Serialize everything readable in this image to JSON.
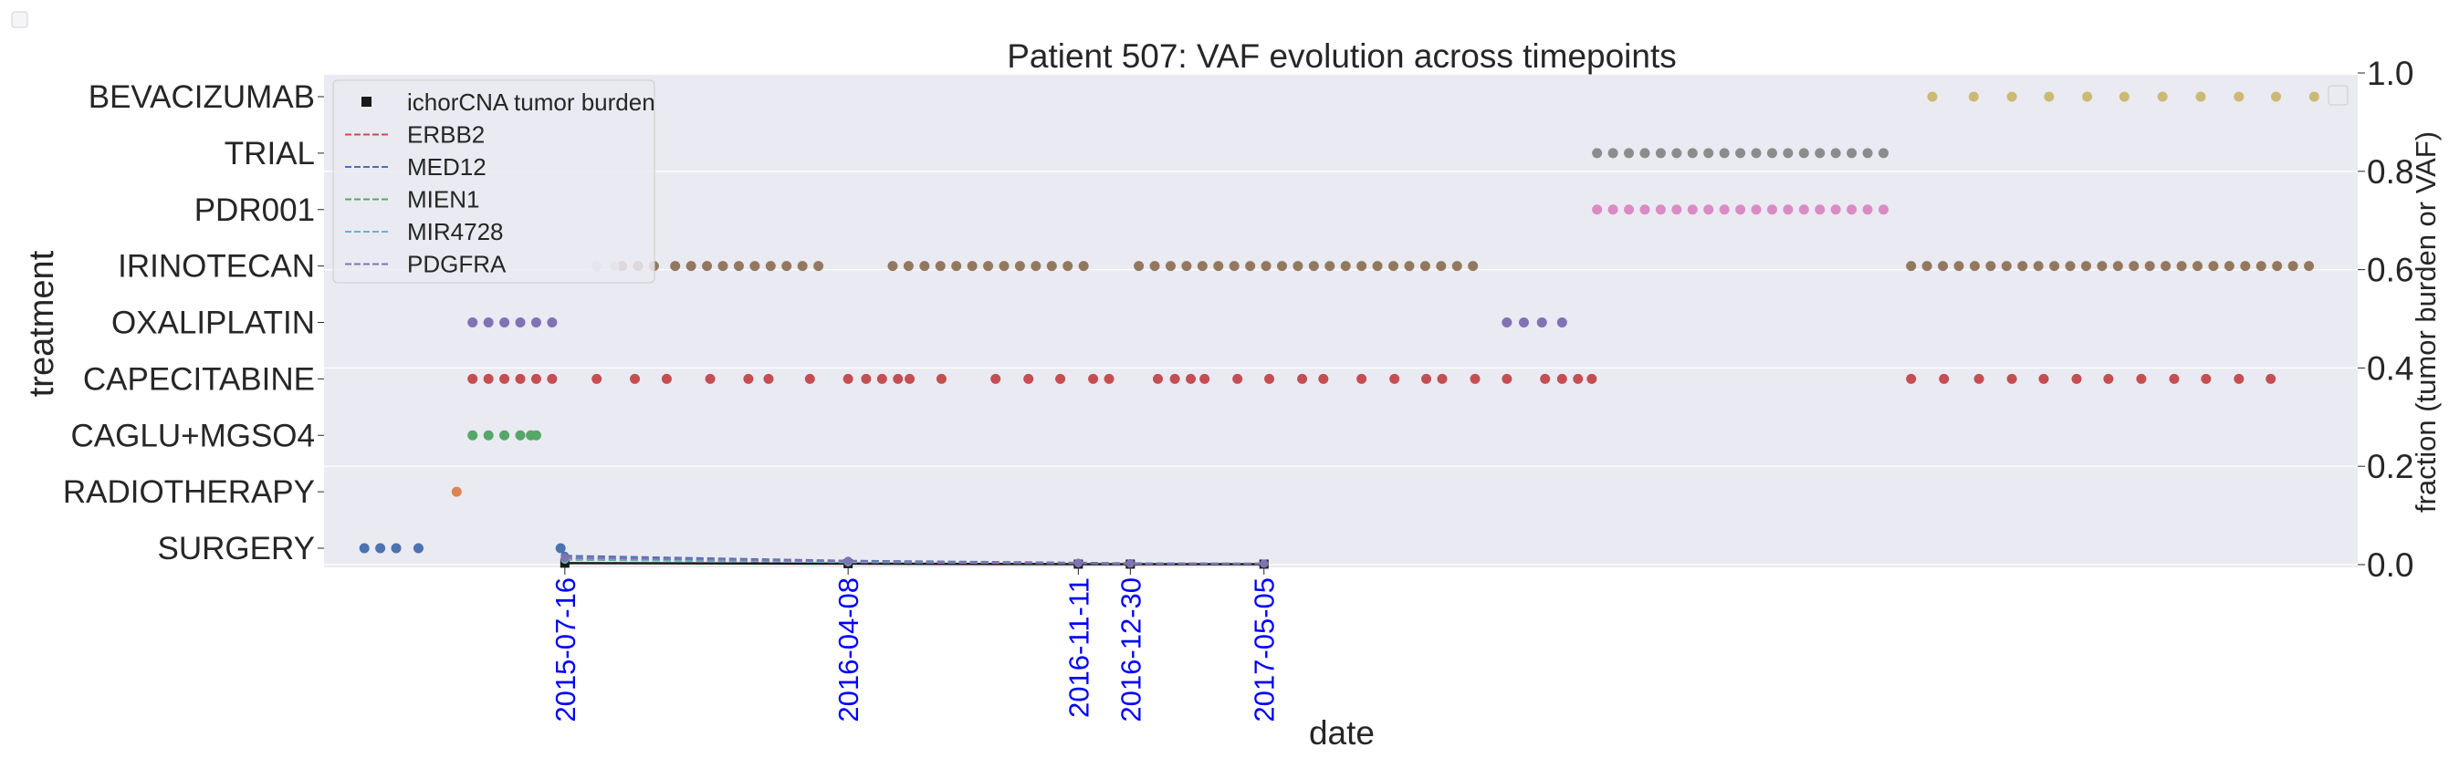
{
  "chart_data": {
    "type": "scatter",
    "title": "Patient 507: VAF evolution across timepoints",
    "xlabel": "date",
    "ylabel_left": "treatment",
    "ylabel_right": "fraction (tumor burden or VAF)",
    "right_ylim": [
      0.0,
      1.0
    ],
    "right_yticks": [
      "0.0",
      "0.2",
      "0.4",
      "0.6",
      "0.8",
      "1.0"
    ],
    "treatments": [
      "SURGERY",
      "RADIOTHERAPY",
      "CAGLU+MGSO4",
      "CAPECITABINE",
      "OXALIPLATIN",
      "IRINOTECAN",
      "PDR001",
      "TRIAL",
      "BEVACIZUMAB"
    ],
    "sample_dates": [
      "2015-07-16",
      "2016-04-08",
      "2016-11-11",
      "2016-12-30",
      "2017-05-05"
    ],
    "x_range": [
      "2014-12-01",
      "2020-03-01"
    ],
    "grid": true,
    "legend_position": "upper left",
    "treatment_events": [
      {
        "treatment": "SURGERY",
        "color": "#4c72b0",
        "dates": [
          "2015-01-08",
          "2015-01-23",
          "2015-02-07",
          "2015-02-28",
          "2015-07-12"
        ]
      },
      {
        "treatment": "RADIOTHERAPY",
        "color": "#dd8452",
        "dates": [
          "2015-04-05"
        ]
      },
      {
        "treatment": "CAGLU+MGSO4",
        "color": "#55a868",
        "dates": [
          "2015-04-20",
          "2015-05-05",
          "2015-05-20",
          "2015-06-04",
          "2015-06-14",
          "2015-06-19"
        ]
      },
      {
        "treatment": "CAPECITABINE",
        "color": "#c44e52",
        "dates": [
          "2015-04-20",
          "2015-05-05",
          "2015-05-20",
          "2015-06-04",
          "2015-06-19",
          "2015-07-04",
          "2015-08-15",
          "2015-09-20",
          "2015-10-20",
          "2015-11-30",
          "2016-01-05",
          "2016-01-24",
          "2016-03-03",
          "2016-04-08",
          "2016-04-25",
          "2016-05-10",
          "2016-05-25",
          "2016-06-05",
          "2016-07-05",
          "2016-08-25",
          "2016-09-25",
          "2016-10-25",
          "2016-11-25",
          "2016-12-10",
          "2017-01-25",
          "2017-02-10",
          "2017-02-25",
          "2017-03-10",
          "2017-04-10",
          "2017-05-10",
          "2017-06-10",
          "2017-06-30",
          "2017-08-05",
          "2017-09-05",
          "2017-10-05",
          "2017-10-20",
          "2017-11-20",
          "2017-12-20",
          "2018-01-25",
          "2018-02-10",
          "2018-02-25",
          "2018-03-10",
          "2019-01-05",
          "2019-02-05",
          "2019-03-10",
          "2019-04-10",
          "2019-05-10",
          "2019-06-10",
          "2019-07-10",
          "2019-08-10",
          "2019-09-10",
          "2019-10-10",
          "2019-11-10",
          "2019-12-10"
        ]
      },
      {
        "treatment": "OXALIPLATIN",
        "color": "#8172b3",
        "dates": [
          "2015-04-20",
          "2015-05-05",
          "2015-05-20",
          "2015-06-04",
          "2015-06-19",
          "2015-07-04",
          "2017-12-20",
          "2018-01-05",
          "2018-01-22",
          "2018-02-10"
        ]
      },
      {
        "treatment": "IRINOTECAN",
        "color": "#937860",
        "dates": [
          "2015-09-08",
          "2015-09-23",
          "2015-10-08",
          "2015-10-28",
          "2015-11-12",
          "2015-11-27",
          "2015-12-12",
          "2015-12-27",
          "2016-01-11",
          "2016-01-26",
          "2016-02-10",
          "2016-02-25",
          "2016-03-11",
          "2016-05-20",
          "2016-06-04",
          "2016-06-19",
          "2016-07-04",
          "2016-07-19",
          "2016-08-03",
          "2016-08-18",
          "2016-09-02",
          "2016-09-17",
          "2016-10-02",
          "2016-10-17",
          "2016-11-01",
          "2016-11-16",
          "2017-01-07",
          "2017-01-22",
          "2017-02-06",
          "2017-02-21",
          "2017-03-08",
          "2017-03-23",
          "2017-04-07",
          "2017-04-22",
          "2017-05-07",
          "2017-05-22",
          "2017-06-06",
          "2017-06-21",
          "2017-07-06",
          "2017-07-21",
          "2017-08-05",
          "2017-08-20",
          "2017-09-04",
          "2017-09-19",
          "2017-10-04",
          "2017-10-19",
          "2017-11-03",
          "2017-11-18",
          "2019-01-05",
          "2019-01-20",
          "2019-02-04",
          "2019-02-19",
          "2019-03-06",
          "2019-03-21",
          "2019-04-05",
          "2019-04-20",
          "2019-05-05",
          "2019-05-20",
          "2019-06-04",
          "2019-06-19",
          "2019-07-04",
          "2019-07-19",
          "2019-08-03",
          "2019-08-18",
          "2019-09-02",
          "2019-09-17",
          "2019-10-02",
          "2019-10-17",
          "2019-11-01",
          "2019-11-16",
          "2019-12-01",
          "2019-12-16",
          "2019-12-31",
          "2020-01-15"
        ]
      },
      {
        "treatment": "IRINOTECAN",
        "color": "#c9c9c9",
        "dates": [
          "2015-08-15",
          "2015-09-01"
        ]
      },
      {
        "treatment": "PDR001",
        "color": "#da8bc3",
        "dates": [
          "2018-03-15",
          "2018-03-30",
          "2018-04-14",
          "2018-04-29",
          "2018-05-14",
          "2018-05-29",
          "2018-06-13",
          "2018-06-28",
          "2018-07-13",
          "2018-07-28",
          "2018-08-12",
          "2018-08-27",
          "2018-09-11",
          "2018-09-26",
          "2018-10-11",
          "2018-10-26",
          "2018-11-10",
          "2018-11-25",
          "2018-12-10"
        ]
      },
      {
        "treatment": "TRIAL",
        "color": "#8c8c8c",
        "dates": [
          "2018-03-15",
          "2018-03-30",
          "2018-04-14",
          "2018-04-29",
          "2018-05-14",
          "2018-05-29",
          "2018-06-13",
          "2018-06-28",
          "2018-07-13",
          "2018-07-28",
          "2018-08-12",
          "2018-08-27",
          "2018-09-11",
          "2018-09-26",
          "2018-10-11",
          "2018-10-26",
          "2018-11-10",
          "2018-11-25",
          "2018-12-10"
        ]
      },
      {
        "treatment": "BEVACIZUMAB",
        "color": "#ccb974",
        "dates": [
          "2019-01-25",
          "2019-03-05",
          "2019-04-10",
          "2019-05-15",
          "2019-06-20",
          "2019-07-25",
          "2019-08-30",
          "2019-10-05",
          "2019-11-10",
          "2019-12-15",
          "2020-01-20"
        ]
      }
    ],
    "series": [
      {
        "name": "ichorCNA tumor burden",
        "style": "solid",
        "marker": "square",
        "color": "#1a1a1a",
        "x": [
          "2015-07-16",
          "2016-04-08",
          "2016-11-11",
          "2016-12-30",
          "2017-05-05"
        ],
        "values": [
          0.003,
          0.002,
          0.001,
          0.001,
          0.001
        ]
      },
      {
        "name": "ERBB2",
        "style": "dashed",
        "color": "#c44e52",
        "x": [
          "2015-07-16",
          "2016-04-08",
          "2016-11-11",
          "2016-12-30",
          "2017-05-05"
        ],
        "values": [
          0.012,
          0.006,
          0.003,
          0.002,
          0.002
        ]
      },
      {
        "name": "MED12",
        "style": "dashed",
        "color": "#4c72b0",
        "x": [
          "2015-07-16",
          "2016-04-08",
          "2016-11-11",
          "2016-12-30",
          "2017-05-05"
        ],
        "values": [
          0.018,
          0.008,
          0.004,
          0.003,
          0.002
        ]
      },
      {
        "name": "MIEN1",
        "style": "dashed",
        "color": "#55a868",
        "x": [
          "2015-07-16",
          "2016-04-08",
          "2016-11-11",
          "2016-12-30",
          "2017-05-05"
        ],
        "values": [
          0.01,
          0.005,
          0.003,
          0.002,
          0.002
        ]
      },
      {
        "name": "MIR4728",
        "style": "dashed",
        "color": "#64b5cd",
        "x": [
          "2015-07-16",
          "2016-04-08",
          "2016-11-11",
          "2016-12-30",
          "2017-05-05"
        ],
        "values": [
          0.011,
          0.005,
          0.003,
          0.002,
          0.002
        ]
      },
      {
        "name": "PDGFRA",
        "style": "dashed",
        "color": "#8172b3",
        "x": [
          "2015-07-16",
          "2016-04-08",
          "2016-11-11",
          "2016-12-30",
          "2017-05-05"
        ],
        "values": [
          0.014,
          0.007,
          0.003,
          0.002,
          0.002
        ]
      }
    ]
  },
  "colors": {
    "plot_background": "#eaeaf2",
    "grid": "#ffffff",
    "date_tick": "#0000ff",
    "text": "#262626"
  }
}
